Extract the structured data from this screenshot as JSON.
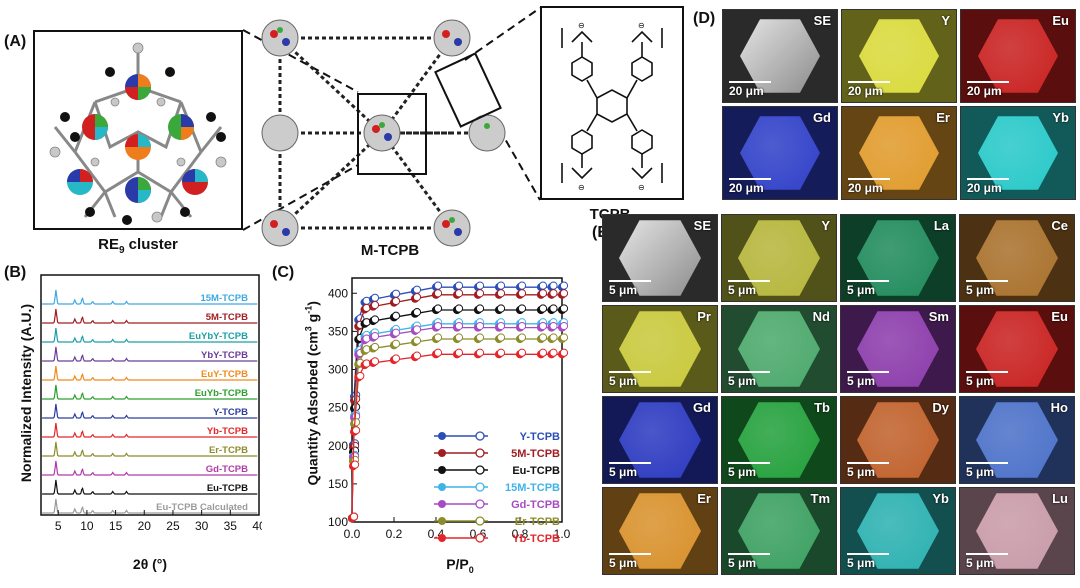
{
  "panels": {
    "a": "(A)",
    "b": "(B)",
    "c": "(C)",
    "d": "(D)",
    "e": "(E)"
  },
  "structure": {
    "cluster_caption": "RE",
    "cluster_sub": "9",
    "cluster_tail": " cluster",
    "framework_caption": "M-TCPB",
    "linker_caption": "TCPB"
  },
  "pxrd": {
    "ylabel": "Normalized Intensity (A.U.)",
    "xlabel": "2θ (°)",
    "xticks": [
      "5",
      "10",
      "15",
      "20",
      "25",
      "30",
      "35",
      "40"
    ],
    "traces": [
      {
        "name": "15M-TCPB",
        "color": "#3fa9e0"
      },
      {
        "name": "5M-TCPB",
        "color": "#a11d21"
      },
      {
        "name": "EuYbY-TCPB",
        "color": "#1aa0a8"
      },
      {
        "name": "YbY-TCPB",
        "color": "#6a3d9a"
      },
      {
        "name": "EuY-TCPB",
        "color": "#f08a1c"
      },
      {
        "name": "EuYb-TCPB",
        "color": "#2ca02c"
      },
      {
        "name": "Y-TCPB",
        "color": "#2c3e9e"
      },
      {
        "name": "Yb-TCPB",
        "color": "#e3262b"
      },
      {
        "name": "Er-TCPB",
        "color": "#8c8c2a"
      },
      {
        "name": "Gd-TCPB",
        "color": "#b23aa8"
      },
      {
        "name": "Eu-TCPB",
        "color": "#111111"
      },
      {
        "name": "Eu-TCPB Calculated",
        "color": "#9a9a9a"
      }
    ]
  },
  "chart_data": {
    "type": "line",
    "title": "",
    "xlabel": "P/P0",
    "ylabel": "Quantity Adsorbed (cm3 g-1)",
    "xlim": [
      0,
      1.0
    ],
    "ylim": [
      100,
      420
    ],
    "xticks": [
      "0.0",
      "0.2",
      "0.4",
      "0.6",
      "0.8",
      "1.0"
    ],
    "yticks": [
      "100",
      "150",
      "200",
      "250",
      "300",
      "350",
      "400"
    ],
    "x": [
      0.0,
      0.005,
      0.01,
      0.03,
      0.06,
      0.1,
      0.2,
      0.3,
      0.4,
      0.5,
      0.6,
      0.7,
      0.8,
      0.9,
      0.95,
      1.0
    ],
    "series": [
      {
        "name": "Y-TCPB",
        "color": "#2b4fb8",
        "plateau": 408
      },
      {
        "name": "5M-TCPB",
        "color": "#a11d21",
        "plateau": 398
      },
      {
        "name": "Eu-TCPB",
        "color": "#111111",
        "plateau": 378
      },
      {
        "name": "15M-TCPB",
        "color": "#3fb4e8",
        "plateau": 360
      },
      {
        "name": "Gd-TCPB",
        "color": "#a64cc2",
        "plateau": 355
      },
      {
        "name": "Er-TCPB",
        "color": "#8c8c2a",
        "plateau": 340
      },
      {
        "name": "Yb-TCPB",
        "color": "#e3262b",
        "plateau": 320
      }
    ]
  },
  "mapping_d": {
    "tiles": [
      {
        "el": "SE",
        "scale": "20 μm",
        "color": "#9a9a9a"
      },
      {
        "el": "Y",
        "scale": "20 μm",
        "color": "#d9d93a"
      },
      {
        "el": "Eu",
        "scale": "20 μm",
        "color": "#c8201e"
      },
      {
        "el": "Gd",
        "scale": "20 μm",
        "color": "#2f3fc8"
      },
      {
        "el": "Er",
        "scale": "20 μm",
        "color": "#e09a2a"
      },
      {
        "el": "Yb",
        "scale": "20 μm",
        "color": "#27c8c8"
      }
    ]
  },
  "mapping_e": {
    "tiles": [
      {
        "el": "SE",
        "scale": "5 μm",
        "color": "#9a9a9a"
      },
      {
        "el": "Y",
        "scale": "5 μm",
        "color": "#b5b53a"
      },
      {
        "el": "La",
        "scale": "5 μm",
        "color": "#1e8a5a"
      },
      {
        "el": "Ce",
        "scale": "5 μm",
        "color": "#a8702a"
      },
      {
        "el": "Pr",
        "scale": "5 μm",
        "color": "#c8c83a"
      },
      {
        "el": "Nd",
        "scale": "5 μm",
        "color": "#4aa86a"
      },
      {
        "el": "Sm",
        "scale": "5 μm",
        "color": "#8a3aaa"
      },
      {
        "el": "Eu",
        "scale": "5 μm",
        "color": "#c8201e"
      },
      {
        "el": "Gd",
        "scale": "5 μm",
        "color": "#2a38c0"
      },
      {
        "el": "Tb",
        "scale": "5 μm",
        "color": "#22a03a"
      },
      {
        "el": "Dy",
        "scale": "5 μm",
        "color": "#c0602a"
      },
      {
        "el": "Ho",
        "scale": "5 μm",
        "color": "#4a70c8"
      },
      {
        "el": "Er",
        "scale": "5 μm",
        "color": "#d8902a"
      },
      {
        "el": "Tm",
        "scale": "5 μm",
        "color": "#3aa060"
      },
      {
        "el": "Yb",
        "scale": "5 μm",
        "color": "#2ab0b0"
      },
      {
        "el": "Lu",
        "scale": "5 μm",
        "color": "#c89aa8"
      }
    ]
  }
}
